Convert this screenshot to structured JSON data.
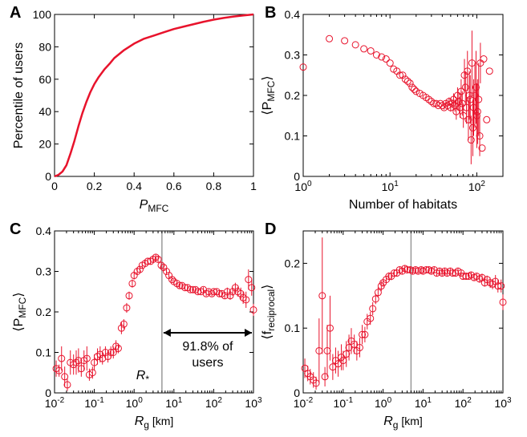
{
  "colors": {
    "series": "#e8132c",
    "axis": "#000000",
    "refline": "#999999"
  },
  "chart_data": [
    {
      "panel": "A",
      "type": "line",
      "xlabel": "P",
      "xlabel_sub": "MFC",
      "ylabel": "Percentile of users",
      "xlim": [
        0,
        1
      ],
      "ylim": [
        0,
        100
      ],
      "xscale": "linear",
      "yscale": "linear",
      "x_ticks": [
        "0",
        "0.2",
        "0.4",
        "0.6",
        "0.8",
        "1"
      ],
      "y_ticks": [
        "0",
        "20",
        "40",
        "60",
        "80",
        "100"
      ],
      "series": [
        {
          "x": [
            0,
            0.02,
            0.04,
            0.06,
            0.08,
            0.1,
            0.12,
            0.14,
            0.16,
            0.18,
            0.2,
            0.22,
            0.25,
            0.28,
            0.3,
            0.35,
            0.4,
            0.45,
            0.5,
            0.55,
            0.6,
            0.65,
            0.7,
            0.75,
            0.8,
            0.85,
            0.9,
            0.95,
            1.0
          ],
          "y": [
            0,
            1,
            3,
            7,
            14,
            22,
            31,
            39,
            46,
            52,
            57,
            61,
            66,
            70,
            73,
            78,
            82,
            85,
            87,
            89,
            91,
            92.5,
            94,
            95.5,
            96.8,
            97.8,
            98.7,
            99.4,
            100
          ]
        }
      ]
    },
    {
      "panel": "B",
      "type": "scatter",
      "xlabel": "Number of habitats",
      "ylabel": "⟨P",
      "ylabel_sub": "MFC",
      "ylabel_end": "⟩",
      "xlim": [
        1,
        200
      ],
      "ylim": [
        0,
        0.4
      ],
      "xscale": "log",
      "yscale": "linear",
      "x_ticks": [
        {
          "base": "10",
          "exp": "0",
          "v": 1
        },
        {
          "base": "10",
          "exp": "1",
          "v": 10
        },
        {
          "base": "10",
          "exp": "2",
          "v": 100
        }
      ],
      "y_ticks": [
        "0",
        "0.1",
        "0.2",
        "0.3",
        "0.4"
      ],
      "series": [
        {
          "x": [
            1,
            2,
            3,
            4,
            5,
            6,
            7,
            8,
            9,
            10,
            11,
            12,
            13,
            14,
            15,
            16,
            17,
            18,
            19,
            20,
            22,
            24,
            26,
            28,
            30,
            32,
            34,
            36,
            38,
            40,
            42,
            44,
            46,
            48,
            50,
            52,
            54,
            56,
            58,
            60,
            62,
            64,
            66,
            68,
            70,
            72,
            74,
            76,
            78,
            80,
            82,
            84,
            86,
            88,
            90,
            92,
            95,
            98,
            100,
            102,
            105,
            108,
            110,
            115,
            120,
            130,
            140
          ],
          "y": [
            0.27,
            0.34,
            0.335,
            0.325,
            0.315,
            0.31,
            0.3,
            0.295,
            0.29,
            0.28,
            0.265,
            0.26,
            0.25,
            0.25,
            0.24,
            0.235,
            0.23,
            0.22,
            0.215,
            0.21,
            0.205,
            0.2,
            0.195,
            0.19,
            0.185,
            0.18,
            0.18,
            0.175,
            0.18,
            0.175,
            0.17,
            0.18,
            0.175,
            0.185,
            0.17,
            0.18,
            0.19,
            0.175,
            0.16,
            0.2,
            0.185,
            0.17,
            0.21,
            0.18,
            0.15,
            0.25,
            0.22,
            0.17,
            0.26,
            0.14,
            0.2,
            0.19,
            0.09,
            0.28,
            0.12,
            0.17,
            0.2,
            0.22,
            0.15,
            0.16,
            0.19,
            0.1,
            0.28,
            0.07,
            0.29,
            0.14,
            0.26
          ],
          "err": [
            0,
            0,
            0,
            0,
            0,
            0,
            0,
            0,
            0,
            0,
            0,
            0,
            0,
            0,
            0,
            0,
            0,
            0,
            0,
            0,
            0,
            0,
            0,
            0,
            0,
            0,
            0,
            0,
            0,
            0,
            0.005,
            0.005,
            0.01,
            0.01,
            0.01,
            0.01,
            0.015,
            0.015,
            0.02,
            0.02,
            0.02,
            0.025,
            0.03,
            0.03,
            0.03,
            0.04,
            0.04,
            0.04,
            0.05,
            0.05,
            0.06,
            0.06,
            0.06,
            0.08,
            0.07,
            0.07,
            0.08,
            0.09,
            0.08,
            0.08,
            0.09,
            0.05,
            0.05,
            0,
            0,
            0,
            0
          ]
        }
      ]
    },
    {
      "panel": "C",
      "type": "scatter",
      "xlabel": "R",
      "xlabel_sub": "g",
      "xlabel_unit": " [km]",
      "ylabel": "⟨P",
      "ylabel_sub": "MFC",
      "ylabel_end": "⟩",
      "xlim": [
        0.01,
        1000
      ],
      "ylim": [
        0,
        0.4
      ],
      "xscale": "log",
      "yscale": "linear",
      "x_ticks": [
        {
          "base": "10",
          "exp": "-2",
          "v": 0.01
        },
        {
          "base": "10",
          "exp": "-1",
          "v": 0.1
        },
        {
          "base": "10",
          "exp": "0",
          "v": 1
        },
        {
          "base": "10",
          "exp": "1",
          "v": 10
        },
        {
          "base": "10",
          "exp": "2",
          "v": 100
        },
        {
          "base": "10",
          "exp": "3",
          "v": 1000
        }
      ],
      "y_ticks": [
        "0",
        "0.1",
        "0.2",
        "0.3",
        "0.4"
      ],
      "reference_line_x": 5,
      "annotations": {
        "arrow_text_1": "91.8% of",
        "arrow_text_2": "users",
        "rstar": "R",
        "rstar_sub": "*"
      },
      "series": [
        {
          "x": [
            0.011,
            0.013,
            0.015,
            0.018,
            0.021,
            0.025,
            0.03,
            0.035,
            0.04,
            0.047,
            0.055,
            0.065,
            0.075,
            0.09,
            0.1,
            0.12,
            0.14,
            0.16,
            0.19,
            0.22,
            0.26,
            0.3,
            0.35,
            0.4,
            0.48,
            0.55,
            0.65,
            0.75,
            0.9,
            1.0,
            1.2,
            1.4,
            1.6,
            1.9,
            2.2,
            2.6,
            3.0,
            3.5,
            4.0,
            4.8,
            5.5,
            6.5,
            7.5,
            9,
            10,
            12,
            14,
            16,
            19,
            22,
            26,
            30,
            35,
            40,
            48,
            55,
            65,
            75,
            90,
            100,
            120,
            140,
            160,
            190,
            220,
            260,
            300,
            350,
            400,
            480,
            550,
            650,
            750,
            900,
            1000
          ],
          "y": [
            0.06,
            0.055,
            0.085,
            0.04,
            0.02,
            0.075,
            0.07,
            0.075,
            0.08,
            0.06,
            0.08,
            0.085,
            0.045,
            0.05,
            0.075,
            0.09,
            0.095,
            0.085,
            0.1,
            0.09,
            0.1,
            0.1,
            0.115,
            0.11,
            0.16,
            0.17,
            0.21,
            0.24,
            0.27,
            0.29,
            0.3,
            0.305,
            0.315,
            0.32,
            0.325,
            0.325,
            0.33,
            0.335,
            0.33,
            0.315,
            0.31,
            0.3,
            0.29,
            0.28,
            0.275,
            0.27,
            0.265,
            0.265,
            0.26,
            0.26,
            0.255,
            0.255,
            0.255,
            0.25,
            0.25,
            0.255,
            0.245,
            0.25,
            0.245,
            0.25,
            0.25,
            0.245,
            0.245,
            0.24,
            0.25,
            0.24,
            0.25,
            0.26,
            0.25,
            0.245,
            0.235,
            0.23,
            0.28,
            0.26,
            0.205
          ],
          "err": [
            0.02,
            0.015,
            0.03,
            0.025,
            0.015,
            0.03,
            0.025,
            0.03,
            0.03,
            0.02,
            0.025,
            0.03,
            0.015,
            0.015,
            0.02,
            0.02,
            0.02,
            0.015,
            0.015,
            0.015,
            0.015,
            0.015,
            0.015,
            0.012,
            0.015,
            0.012,
            0.012,
            0.01,
            0.01,
            0.01,
            0.008,
            0.008,
            0.008,
            0.008,
            0.008,
            0.008,
            0.008,
            0.008,
            0.008,
            0.008,
            0.006,
            0.006,
            0.006,
            0.006,
            0.006,
            0.006,
            0.006,
            0.006,
            0.006,
            0.006,
            0.006,
            0.006,
            0.006,
            0.006,
            0.006,
            0.006,
            0.006,
            0.006,
            0.006,
            0.006,
            0.006,
            0.008,
            0.008,
            0.008,
            0.01,
            0.01,
            0.01,
            0.012,
            0.012,
            0.015,
            0.015,
            0.02,
            0.025,
            0.02,
            0.015
          ]
        }
      ]
    },
    {
      "panel": "D",
      "type": "scatter",
      "xlabel": "R",
      "xlabel_sub": "g",
      "xlabel_unit": " [km]",
      "ylabel": "⟨f",
      "ylabel_sub": "reciprocal",
      "ylabel_end": "⟩",
      "xlim": [
        0.01,
        1000
      ],
      "ylim": [
        0,
        0.25
      ],
      "xscale": "log",
      "yscale": "linear",
      "x_ticks": [
        {
          "base": "10",
          "exp": "-2",
          "v": 0.01
        },
        {
          "base": "10",
          "exp": "-1",
          "v": 0.1
        },
        {
          "base": "10",
          "exp": "0",
          "v": 1
        },
        {
          "base": "10",
          "exp": "1",
          "v": 10
        },
        {
          "base": "10",
          "exp": "2",
          "v": 100
        },
        {
          "base": "10",
          "exp": "3",
          "v": 1000
        }
      ],
      "y_ticks": [
        "0",
        "0.1",
        "0.2"
      ],
      "y_tick_values": [
        0,
        0.1,
        0.2
      ],
      "reference_line_x": 5,
      "series": [
        {
          "x": [
            0.011,
            0.013,
            0.015,
            0.018,
            0.021,
            0.025,
            0.03,
            0.035,
            0.04,
            0.047,
            0.055,
            0.065,
            0.075,
            0.09,
            0.1,
            0.12,
            0.14,
            0.16,
            0.19,
            0.22,
            0.26,
            0.3,
            0.35,
            0.4,
            0.48,
            0.55,
            0.65,
            0.75,
            0.9,
            1.0,
            1.2,
            1.4,
            1.6,
            1.9,
            2.2,
            2.6,
            3.0,
            3.5,
            4.0,
            4.8,
            5.5,
            6.5,
            7.5,
            9,
            10,
            12,
            14,
            16,
            19,
            22,
            26,
            30,
            35,
            40,
            48,
            55,
            65,
            75,
            90,
            100,
            120,
            140,
            160,
            190,
            220,
            260,
            300,
            350,
            400,
            480,
            550,
            650,
            750,
            900,
            1000
          ],
          "y": [
            0.038,
            0.03,
            0.025,
            0.02,
            0.015,
            0.065,
            0.15,
            0.025,
            0.065,
            0.1,
            0.04,
            0.05,
            0.045,
            0.055,
            0.05,
            0.06,
            0.07,
            0.08,
            0.075,
            0.065,
            0.07,
            0.09,
            0.09,
            0.11,
            0.115,
            0.13,
            0.145,
            0.155,
            0.165,
            0.17,
            0.175,
            0.18,
            0.18,
            0.185,
            0.185,
            0.19,
            0.188,
            0.192,
            0.19,
            0.19,
            0.188,
            0.19,
            0.188,
            0.19,
            0.188,
            0.19,
            0.19,
            0.188,
            0.19,
            0.185,
            0.188,
            0.185,
            0.188,
            0.185,
            0.188,
            0.185,
            0.185,
            0.188,
            0.185,
            0.18,
            0.18,
            0.18,
            0.182,
            0.178,
            0.18,
            0.176,
            0.178,
            0.17,
            0.175,
            0.17,
            0.168,
            0.172,
            0.165,
            0.165,
            0.14
          ],
          "err": [
            0.015,
            0.012,
            0.012,
            0.012,
            0.01,
            0.05,
            0.09,
            0.015,
            0.04,
            0.05,
            0.02,
            0.02,
            0.02,
            0.02,
            0.015,
            0.02,
            0.02,
            0.02,
            0.015,
            0.015,
            0.015,
            0.015,
            0.012,
            0.012,
            0.01,
            0.01,
            0.008,
            0.008,
            0.008,
            0.006,
            0.006,
            0.006,
            0.006,
            0.005,
            0.005,
            0.005,
            0.005,
            0.005,
            0.005,
            0.005,
            0.005,
            0.005,
            0.005,
            0.005,
            0.005,
            0.005,
            0.005,
            0.005,
            0.005,
            0.005,
            0.005,
            0.005,
            0.005,
            0.005,
            0.005,
            0.005,
            0.005,
            0.005,
            0.005,
            0.005,
            0.005,
            0.005,
            0.005,
            0.005,
            0.005,
            0.006,
            0.006,
            0.006,
            0.006,
            0.008,
            0.008,
            0.01,
            0.01,
            0.01,
            0.012
          ]
        }
      ]
    }
  ]
}
